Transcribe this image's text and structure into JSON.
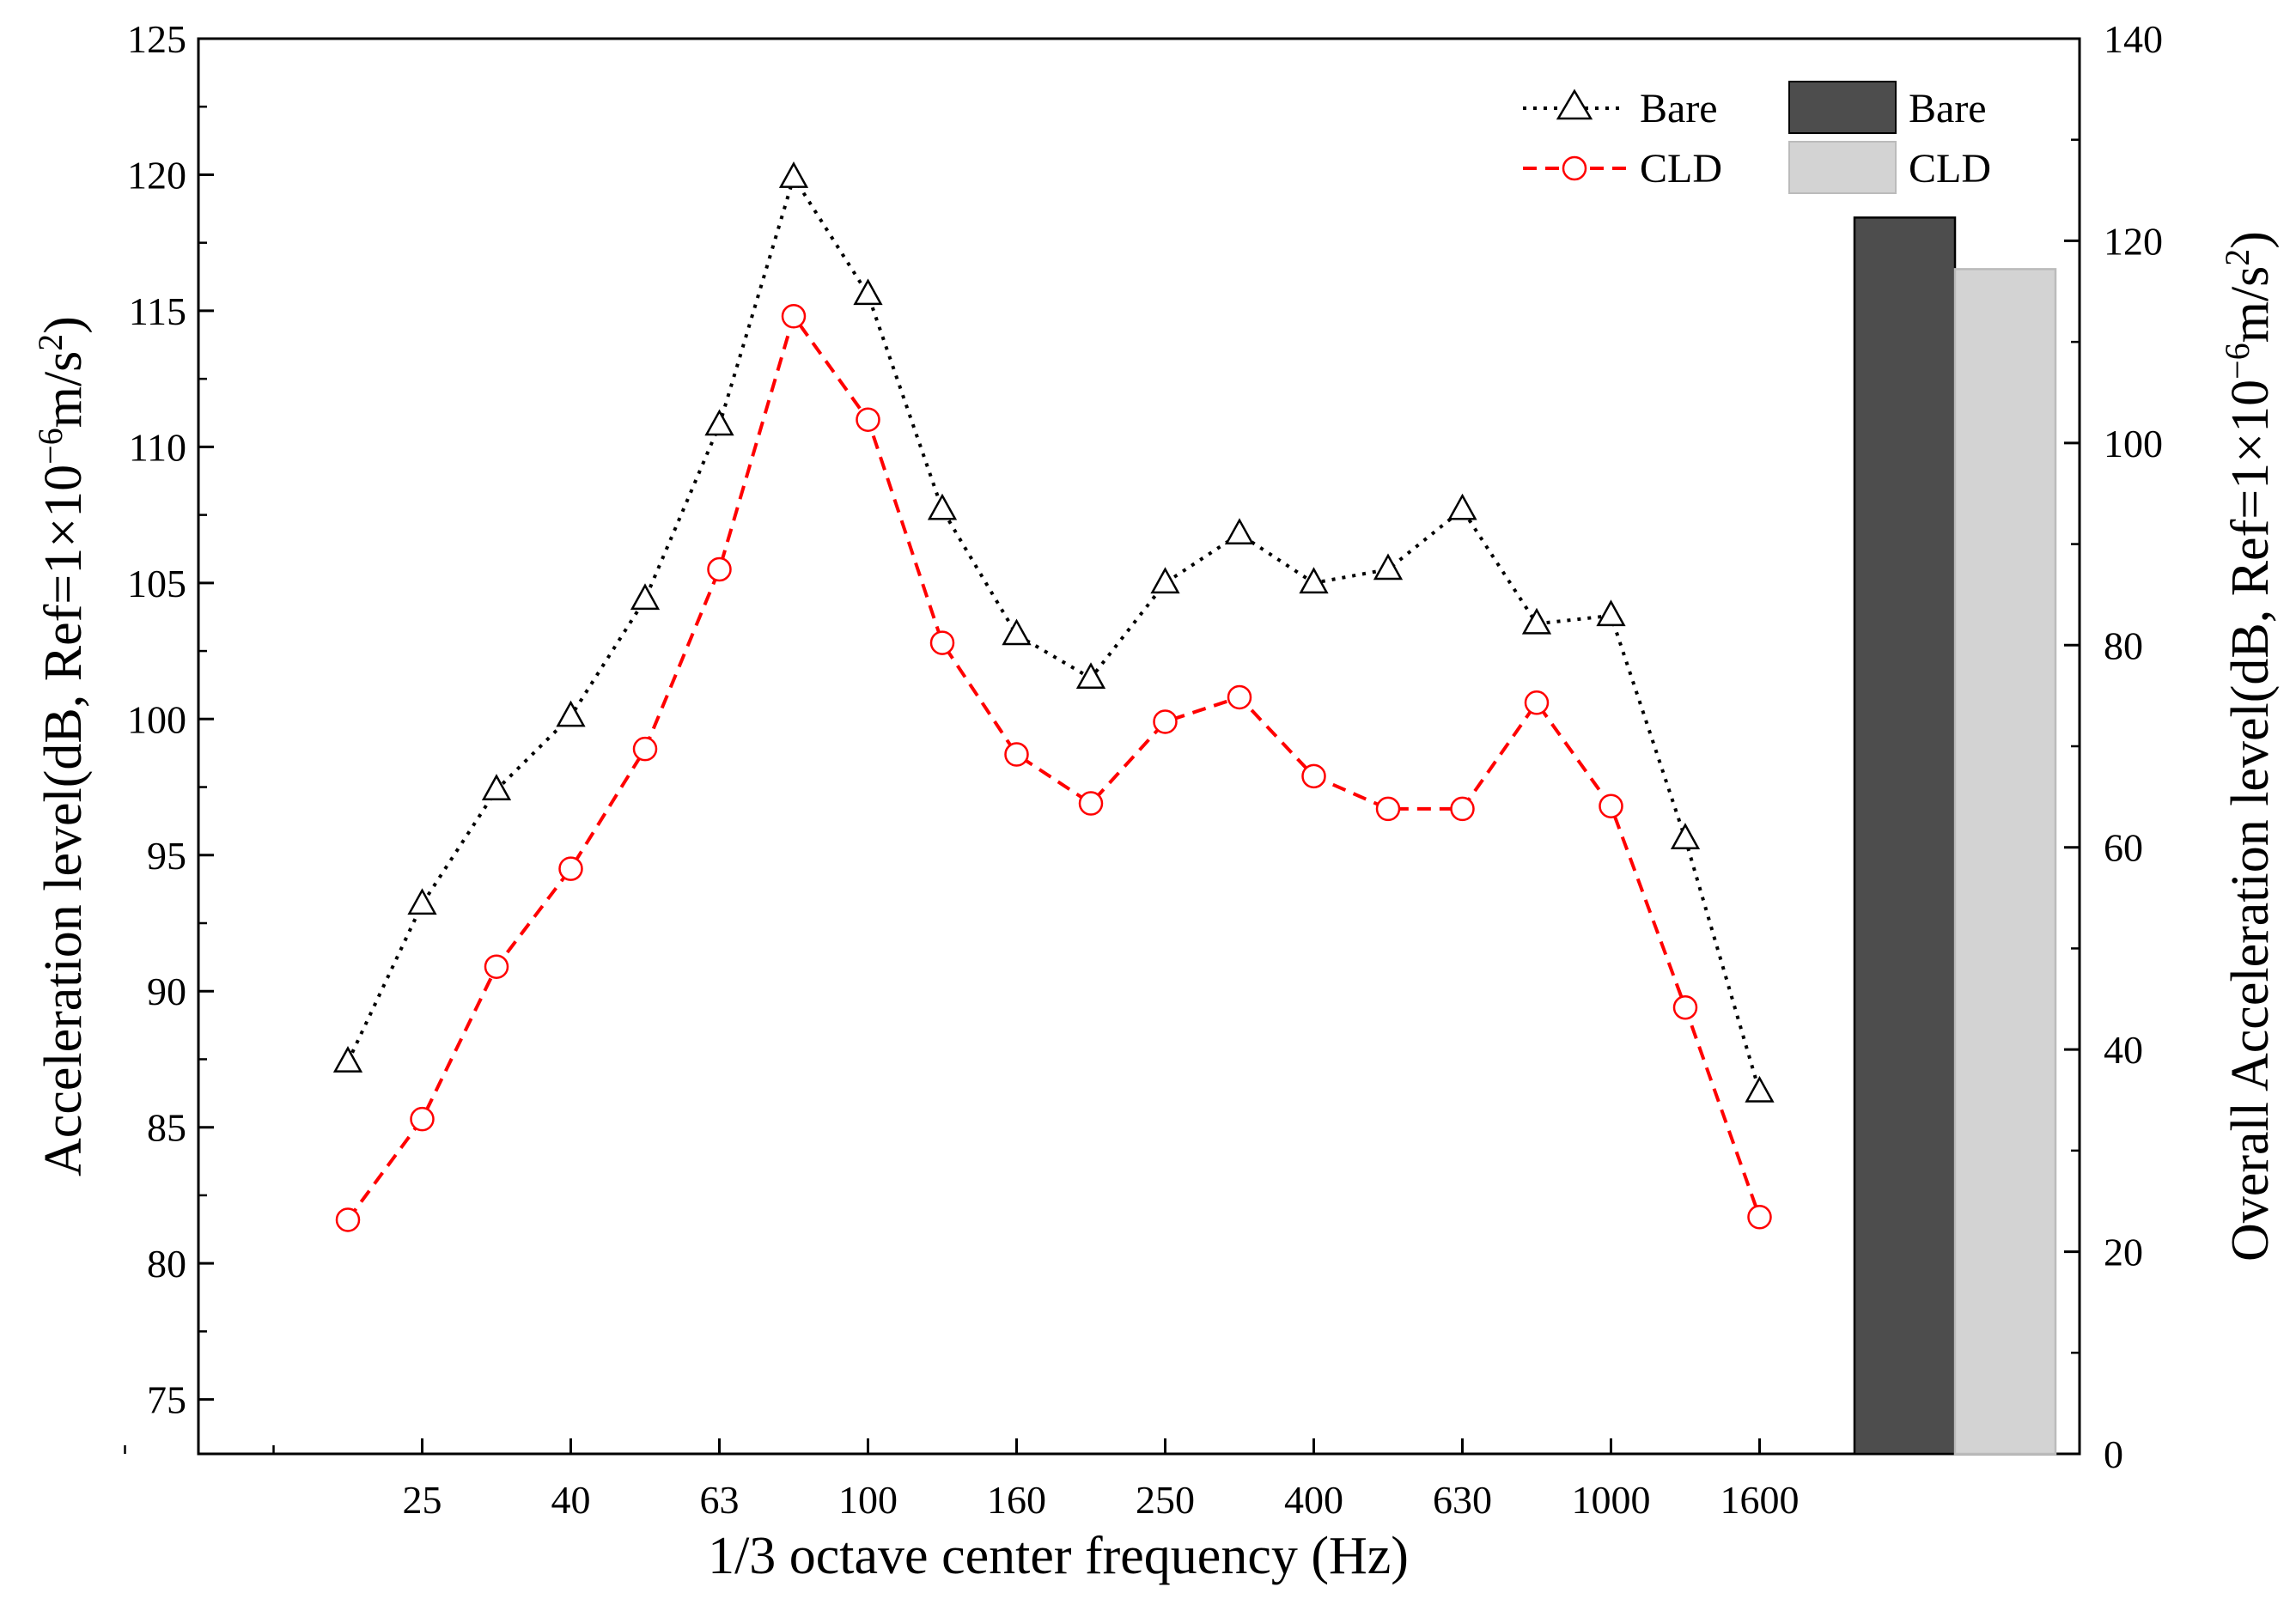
{
  "chart_data": [
    {
      "type": "line",
      "xlabel": "1/3 octave center frequency (Hz)",
      "ylabel": "Acceleration level(dB, Ref=1×10",
      "ylabel_exp": "−6",
      "ylabel_unit": "m/s",
      "ylabel_unit_exp": "2",
      "ylabel_close": ")",
      "ylim": [
        73,
        125
      ],
      "yticks": [
        "75",
        "80",
        "85",
        "90",
        "95",
        "100",
        "105",
        "110",
        "115",
        "120",
        "125"
      ],
      "xtick_labels": [
        "25",
        "40",
        "63",
        "100",
        "160",
        "250",
        "400",
        "630",
        "1000",
        "1600"
      ],
      "bands": [
        "20",
        "25",
        "31.5",
        "40",
        "50",
        "63",
        "80",
        "100",
        "125",
        "160",
        "200",
        "250",
        "315",
        "400",
        "500",
        "630",
        "800",
        "1000",
        "1250",
        "1600"
      ],
      "series": [
        {
          "name": "Bare",
          "marker": "triangle",
          "color": "#000000",
          "values": [
            87.4,
            93.2,
            97.4,
            100.1,
            104.4,
            110.8,
            119.9,
            115.6,
            107.7,
            103.1,
            101.5,
            105.0,
            106.8,
            105.0,
            105.5,
            107.7,
            103.5,
            103.8,
            95.6,
            86.3
          ]
        },
        {
          "name": "CLD",
          "marker": "circle",
          "color": "#ff0000",
          "values": [
            81.6,
            85.3,
            90.9,
            94.5,
            98.9,
            105.5,
            114.8,
            111.0,
            102.8,
            98.7,
            96.9,
            99.9,
            100.8,
            97.9,
            96.7,
            96.7,
            100.6,
            96.8,
            89.4,
            81.7
          ]
        }
      ]
    },
    {
      "type": "bar",
      "ylabel": "Overall Acceleration level(dB, Ref=1×10",
      "ylabel_exp": "−6",
      "ylabel_unit": "m/s",
      "ylabel_unit_exp": "2",
      "ylabel_close": ")",
      "ylim": [
        0,
        140
      ],
      "yticks": [
        "0",
        "20",
        "40",
        "60",
        "80",
        "100",
        "120",
        "140"
      ],
      "series": [
        {
          "name": "Bare",
          "value": 122.3,
          "color": "#4d4d4d"
        },
        {
          "name": "CLD",
          "value": 117.2,
          "color": "#d3d3d3"
        }
      ]
    }
  ],
  "legend": {
    "line_bare": "Bare",
    "line_cld": "CLD",
    "bar_bare": "Bare",
    "bar_cld": "CLD"
  }
}
